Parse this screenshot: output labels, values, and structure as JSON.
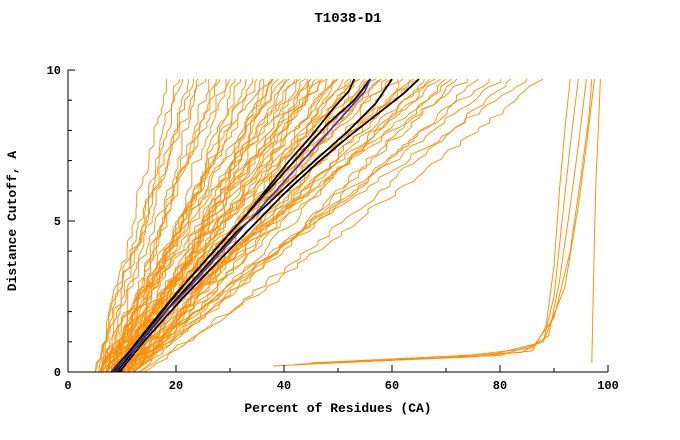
{
  "chart_data": {
    "type": "line",
    "title": "T1038-D1",
    "xlabel": "Percent of Residues (CA)",
    "ylabel": "Distance Cutoff, A",
    "xlim": [
      0,
      100
    ],
    "ylim": [
      0,
      10
    ],
    "x_ticks": [
      0,
      20,
      40,
      60,
      80,
      100
    ],
    "y_ticks": [
      0,
      5,
      10
    ],
    "x_minor_step": 10,
    "y_minor_step": 1,
    "grid": false,
    "legend": false,
    "y_max_data": 9.7,
    "wiggle": 1.8,
    "colors": {
      "model": "#ff8c00",
      "highlight": "#000000",
      "reference": "#3333cc",
      "axis": "#000000"
    },
    "model_lines": [
      [
        5,
        18,
        1.0,
        1
      ],
      [
        6,
        20,
        0.9,
        2
      ],
      [
        5.5,
        21,
        1.1,
        3
      ],
      [
        7,
        22,
        0.95,
        4
      ],
      [
        6,
        23,
        1.15,
        5
      ],
      [
        8,
        24,
        0.85,
        6
      ],
      [
        5,
        25,
        1.2,
        7
      ],
      [
        9,
        26,
        1.0,
        8
      ],
      [
        6.5,
        27,
        0.9,
        9
      ],
      [
        7.5,
        28,
        1.1,
        10
      ],
      [
        10,
        29,
        0.95,
        11
      ],
      [
        6,
        30,
        1.25,
        12
      ],
      [
        8,
        31,
        0.85,
        13
      ],
      [
        11,
        32,
        1.05,
        14
      ],
      [
        7,
        33,
        0.9,
        15
      ],
      [
        9,
        34,
        1.15,
        16
      ],
      [
        6,
        35,
        1.0,
        17
      ],
      [
        12,
        36,
        0.8,
        18
      ],
      [
        8,
        36,
        1.2,
        19
      ],
      [
        10,
        37,
        0.95,
        20
      ],
      [
        7,
        38,
        1.1,
        21
      ],
      [
        9,
        38,
        0.85,
        22
      ],
      [
        11,
        39,
        1.0,
        23
      ],
      [
        6,
        40,
        1.2,
        24
      ],
      [
        8,
        40,
        0.9,
        25
      ],
      [
        12,
        41,
        1.05,
        26
      ],
      [
        7,
        42,
        1.15,
        27
      ],
      [
        10,
        42,
        0.85,
        28
      ],
      [
        9,
        43,
        1.0,
        29
      ],
      [
        11,
        44,
        0.9,
        30
      ],
      [
        6,
        44,
        1.25,
        31
      ],
      [
        8,
        45,
        1.05,
        32
      ],
      [
        12,
        45,
        0.8,
        33
      ],
      [
        7,
        46,
        1.15,
        34
      ],
      [
        10,
        46,
        0.95,
        35
      ],
      [
        9,
        47,
        1.1,
        36
      ],
      [
        11,
        48,
        0.85,
        37
      ],
      [
        6,
        48,
        1.2,
        38
      ],
      [
        8,
        49,
        1.0,
        39
      ],
      [
        12,
        50,
        0.9,
        40
      ],
      [
        7,
        50,
        1.1,
        41
      ],
      [
        10,
        51,
        0.95,
        42
      ],
      [
        9,
        52,
        1.2,
        43
      ],
      [
        11,
        52,
        0.85,
        44
      ],
      [
        6,
        53,
        1.05,
        45
      ],
      [
        8,
        54,
        1.15,
        46
      ],
      [
        12,
        54,
        0.9,
        47
      ],
      [
        7,
        55,
        1.0,
        48
      ],
      [
        10,
        56,
        1.1,
        49
      ],
      [
        9,
        56,
        0.85,
        50
      ],
      [
        11,
        57,
        1.2,
        51
      ],
      [
        6,
        58,
        0.95,
        52
      ],
      [
        8,
        58,
        1.05,
        53
      ],
      [
        12,
        59,
        0.9,
        54
      ],
      [
        7,
        60,
        1.15,
        55
      ],
      [
        10,
        61,
        1.0,
        56
      ],
      [
        9,
        62,
        0.85,
        57
      ],
      [
        11,
        63,
        1.1,
        58
      ],
      [
        8,
        64,
        0.95,
        59
      ],
      [
        6,
        65,
        1.2,
        60
      ],
      [
        12,
        66,
        0.9,
        61
      ],
      [
        7,
        67,
        1.05,
        62
      ],
      [
        10,
        68,
        1.0,
        63
      ],
      [
        9,
        69,
        1.15,
        64
      ],
      [
        11,
        70,
        0.85,
        65
      ],
      [
        8,
        71,
        1.1,
        66
      ],
      [
        13,
        72,
        0.95,
        67
      ],
      [
        7,
        74,
        1.2,
        68
      ],
      [
        10,
        76,
        0.9,
        69
      ],
      [
        12,
        78,
        1.05,
        70
      ],
      [
        9,
        80,
        1.0,
        71
      ],
      [
        13,
        82,
        0.9,
        72
      ],
      [
        11,
        85,
        1.1,
        73
      ],
      [
        14,
        88,
        0.95,
        74
      ]
    ],
    "outlier_lines": [
      [
        [
          38,
          0.2
        ],
        [
          55,
          0.35
        ],
        [
          75,
          0.5
        ],
        [
          86,
          0.7
        ],
        [
          88.5,
          1.5
        ],
        [
          90,
          3.5
        ],
        [
          91,
          6
        ],
        [
          92,
          8
        ],
        [
          93,
          9.7
        ]
      ],
      [
        [
          42,
          0.25
        ],
        [
          60,
          0.4
        ],
        [
          80,
          0.55
        ],
        [
          88,
          1.0
        ],
        [
          90,
          2.5
        ],
        [
          91.5,
          5
        ],
        [
          93,
          7.5
        ],
        [
          94.5,
          9.7
        ]
      ],
      [
        [
          45,
          0.3
        ],
        [
          68,
          0.5
        ],
        [
          84,
          0.65
        ],
        [
          89,
          1.2
        ],
        [
          91,
          3
        ],
        [
          93,
          5.5
        ],
        [
          94.5,
          7.5
        ],
        [
          96,
          9.7
        ]
      ],
      [
        [
          50,
          0.3
        ],
        [
          72,
          0.5
        ],
        [
          86,
          0.8
        ],
        [
          90,
          1.8
        ],
        [
          93,
          4
        ],
        [
          95,
          6.5
        ],
        [
          96.5,
          8.5
        ],
        [
          97,
          9.7
        ]
      ],
      [
        [
          55,
          0.35
        ],
        [
          78,
          0.55
        ],
        [
          88,
          1.0
        ],
        [
          92,
          2.8
        ],
        [
          94.5,
          5.5
        ],
        [
          96,
          7.5
        ],
        [
          97.5,
          9.7
        ]
      ],
      [
        [
          97,
          0.3
        ],
        [
          97.2,
          2
        ],
        [
          97.5,
          4.5
        ],
        [
          97.8,
          6.5
        ],
        [
          98.2,
          8
        ],
        [
          98.6,
          9.7
        ]
      ]
    ],
    "highlight_lines": [
      [
        [
          8,
          0
        ],
        [
          11,
          0.6
        ],
        [
          15,
          1.5
        ],
        [
          20,
          2.6
        ],
        [
          25,
          3.6
        ],
        [
          29,
          4.4
        ],
        [
          33,
          5.2
        ],
        [
          37,
          6.1
        ],
        [
          41,
          7.0
        ],
        [
          45,
          7.8
        ],
        [
          49,
          8.7
        ],
        [
          52,
          9.3
        ],
        [
          53,
          9.7
        ]
      ],
      [
        [
          8.5,
          0
        ],
        [
          12,
          0.8
        ],
        [
          17,
          1.9
        ],
        [
          22,
          3.0
        ],
        [
          27,
          4.0
        ],
        [
          31,
          4.8
        ],
        [
          35,
          5.6
        ],
        [
          40,
          6.6
        ],
        [
          44,
          7.4
        ],
        [
          48,
          8.2
        ],
        [
          53,
          9.0
        ],
        [
          56,
          9.7
        ]
      ],
      [
        [
          9,
          0
        ],
        [
          13,
          0.9
        ],
        [
          19,
          2.2
        ],
        [
          25,
          3.4
        ],
        [
          31,
          4.6
        ],
        [
          36,
          5.4
        ],
        [
          42,
          6.4
        ],
        [
          47,
          7.2
        ],
        [
          52,
          8.0
        ],
        [
          57,
          8.9
        ],
        [
          60,
          9.7
        ]
      ],
      [
        [
          9.5,
          0
        ],
        [
          14,
          1.0
        ],
        [
          21,
          2.4
        ],
        [
          28,
          3.7
        ],
        [
          34,
          4.8
        ],
        [
          40,
          5.9
        ],
        [
          46,
          6.9
        ],
        [
          52,
          7.8
        ],
        [
          57,
          8.5
        ],
        [
          62,
          9.2
        ],
        [
          65,
          9.7
        ]
      ]
    ],
    "reference_line": [
      [
        8,
        0
      ],
      [
        12,
        0.7
      ],
      [
        17,
        1.8
      ],
      [
        23,
        2.9
      ],
      [
        28,
        3.9
      ],
      [
        33,
        4.9
      ],
      [
        38,
        5.9
      ],
      [
        43,
        6.9
      ],
      [
        47,
        7.7
      ],
      [
        51,
        8.5
      ],
      [
        55,
        9.3
      ],
      [
        56,
        9.7
      ]
    ]
  }
}
